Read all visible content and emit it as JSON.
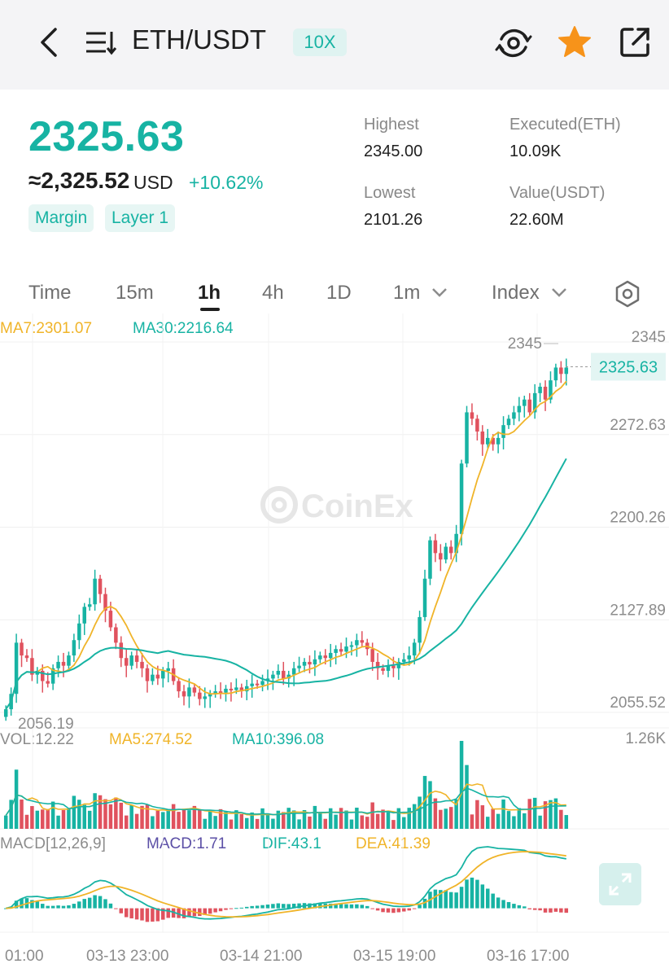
{
  "header": {
    "title": "ETH/USDT",
    "leverage": "10X",
    "icons": [
      "back-icon",
      "pair-list-icon",
      "eye-icon",
      "star-icon",
      "share-icon"
    ],
    "star_color": "#f7931a"
  },
  "ticker": {
    "last_price": "2325.63",
    "approx_usd": "≈2,325.52",
    "usd_unit": "USD",
    "change_pct": "+10.62%",
    "tags": [
      "Margin",
      "Layer 1"
    ],
    "highest_label": "Highest",
    "highest_value": "2345.00",
    "lowest_label": "Lowest",
    "lowest_value": "2101.26",
    "executed_label": "Executed(ETH)",
    "executed_value": "10.09K",
    "value_label": "Value(USDT)",
    "value_value": "22.60M"
  },
  "tabs": {
    "items": [
      "Time",
      "15m",
      "1h",
      "4h",
      "1D",
      "1m",
      "Index"
    ],
    "active": "1h"
  },
  "colors": {
    "up": "#17b3a3",
    "down": "#e0525e",
    "ma7": "#f0b429",
    "ma30": "#17b3a3",
    "macd": "#5b4fa6"
  },
  "indicators": {
    "ma7": "MA7:2301.07",
    "ma30": "MA30:2216.64",
    "vol": "VOL:12.22",
    "ma5": "MA5:274.52",
    "ma10": "MA10:396.08",
    "macd_params": "MACD[12,26,9]",
    "macd": "MACD:1.71",
    "dif": "DIF:43.1",
    "dea": "DEA:41.39"
  },
  "watermark": "CoinEx",
  "chart_data": {
    "type": "candlestick",
    "y_ticks": [
      "2345",
      "2272.63",
      "2200.26",
      "2127.89",
      "2055.52"
    ],
    "ylim": [
      2055.52,
      2345
    ],
    "max_marker": "2345",
    "min_marker": "2056.19",
    "last_price_marker": "2325.63",
    "vol_max": "1.26K",
    "x_ticks": [
      "01:00",
      "03-13 23:00",
      "03-14 21:00",
      "03-15 19:00",
      "03-16 17:00"
    ],
    "close": [
      2058,
      2070,
      2110,
      2100,
      2098,
      2085,
      2088,
      2080,
      2078,
      2090,
      2095,
      2092,
      2100,
      2112,
      2125,
      2138,
      2140,
      2160,
      2148,
      2135,
      2122,
      2110,
      2098,
      2092,
      2100,
      2095,
      2090,
      2080,
      2085,
      2082,
      2088,
      2090,
      2080,
      2072,
      2068,
      2075,
      2071,
      2066,
      2068,
      2070,
      2072,
      2071,
      2074,
      2073,
      2075,
      2072,
      2076,
      2078,
      2077,
      2080,
      2082,
      2085,
      2088,
      2082,
      2085,
      2090,
      2092,
      2095,
      2093,
      2097,
      2100,
      2098,
      2102,
      2105,
      2103,
      2107,
      2108,
      2112,
      2110,
      2105,
      2095,
      2090,
      2088,
      2092,
      2090,
      2095,
      2097,
      2100,
      2110,
      2130,
      2160,
      2190,
      2180,
      2175,
      2185,
      2180,
      2195,
      2250,
      2290,
      2285,
      2275,
      2265,
      2270,
      2265,
      2270,
      2280,
      2285,
      2290,
      2295,
      2300,
      2290,
      2305,
      2310,
      2300,
      2315,
      2325,
      2320,
      2325
    ]
  }
}
